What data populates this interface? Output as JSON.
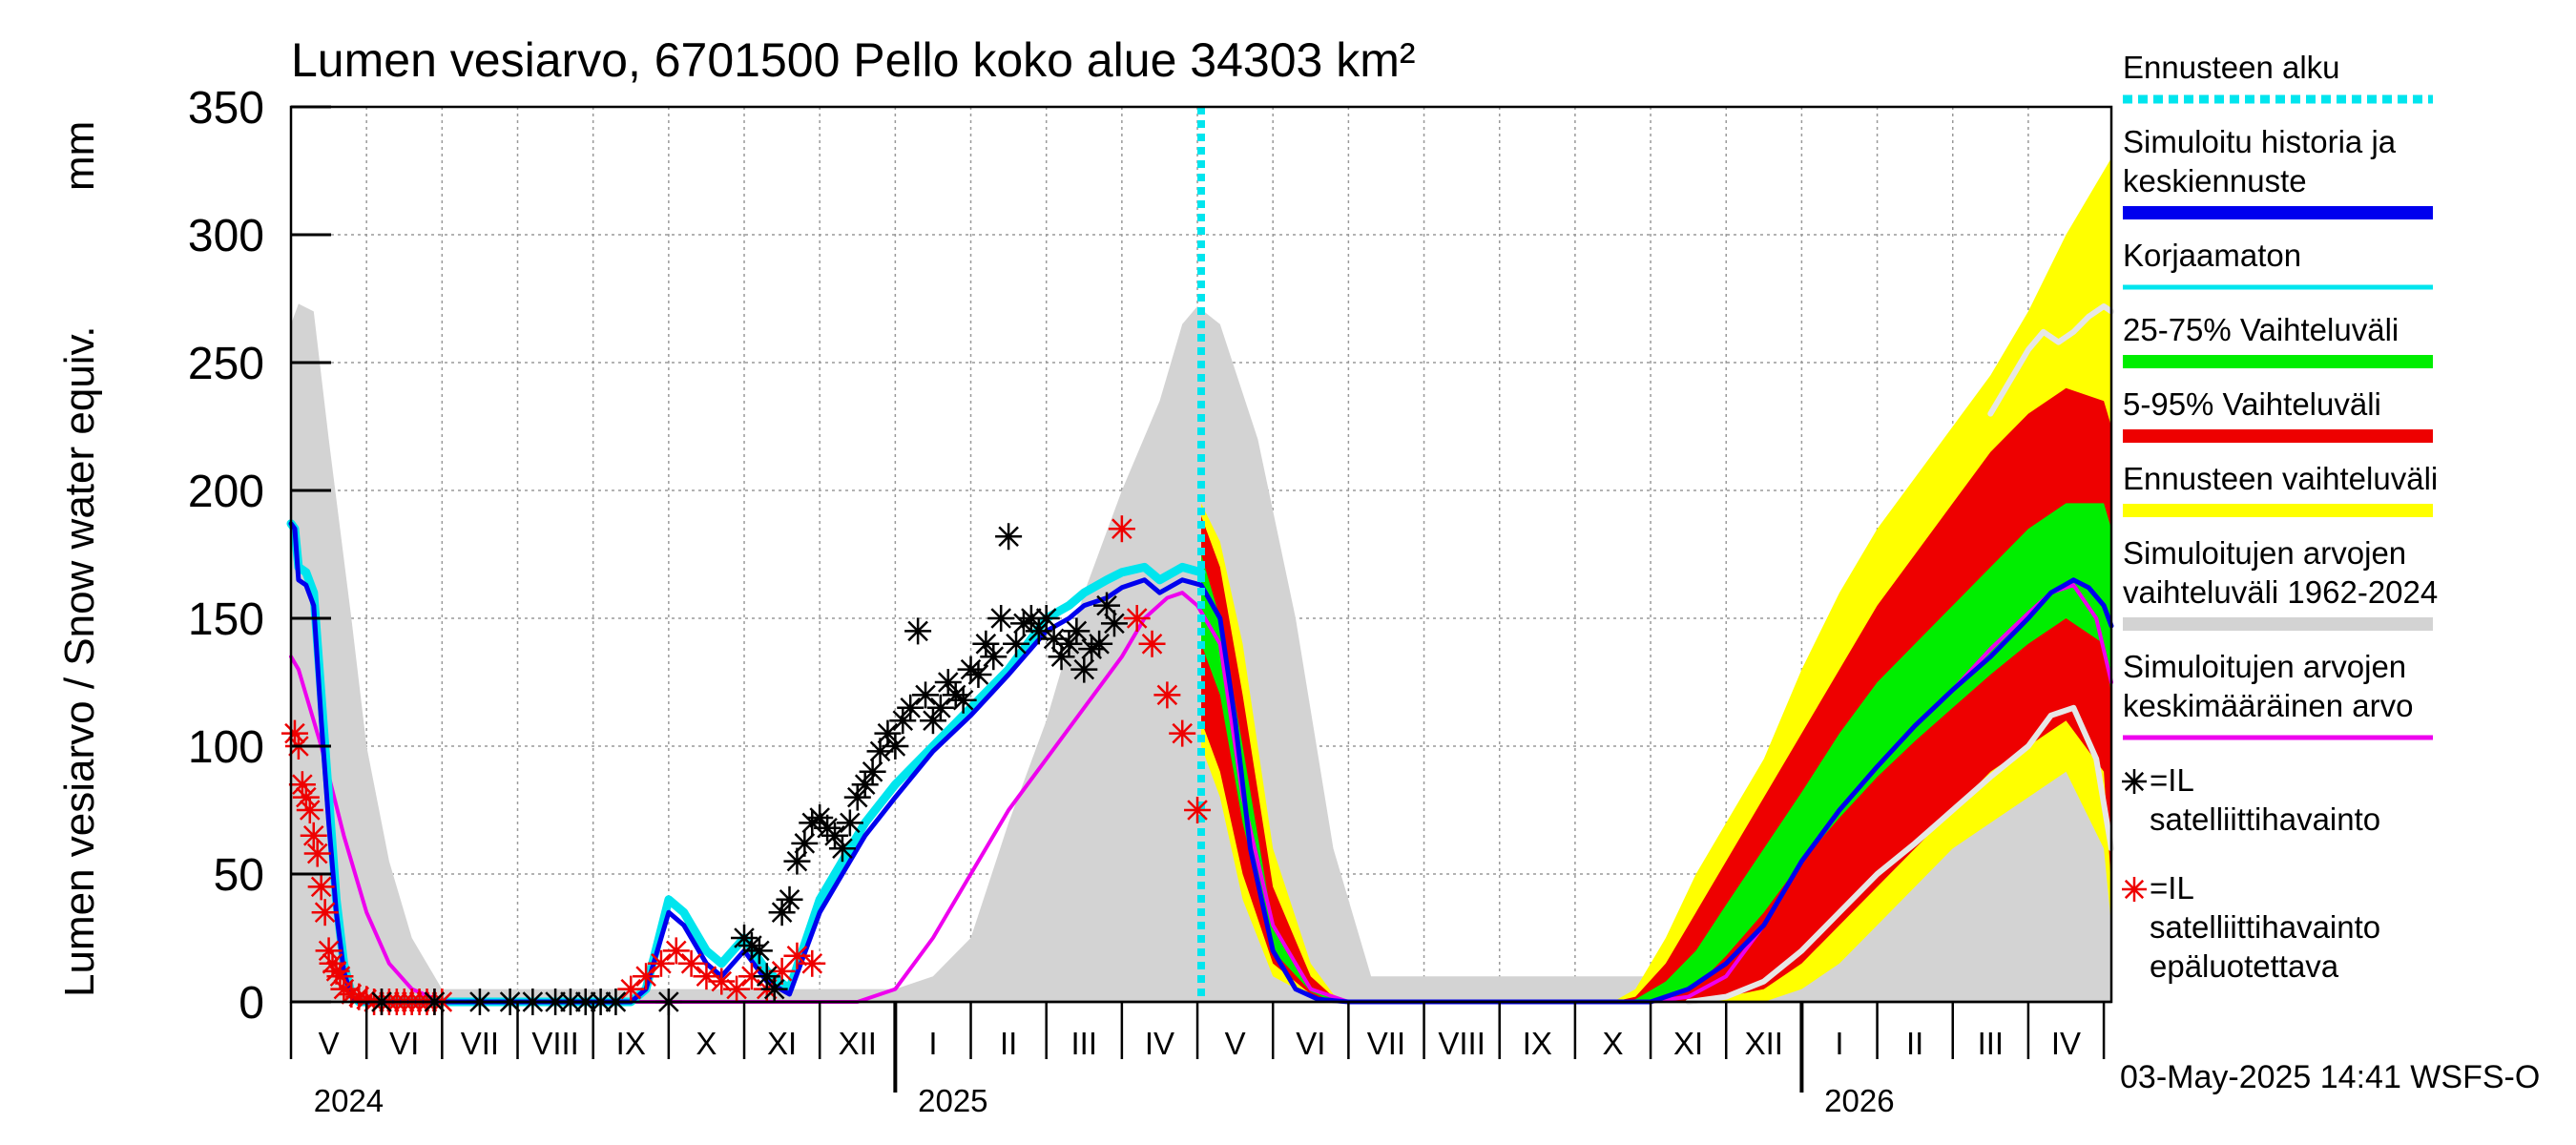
{
  "chart_data": {
    "type": "line",
    "title": "Lumen vesiarvo, 6701500 Pello koko alue 34303 km²",
    "ylabel": "Lumen vesiarvo / Snow water equiv.",
    "yunit": "mm",
    "ylim": [
      0,
      350
    ],
    "yticks": [
      0,
      50,
      100,
      150,
      200,
      250,
      300,
      350
    ],
    "x_unit": "month index (0 = 1 May 2024)",
    "xlim": [
      0,
      24.1
    ],
    "month_labels": [
      "V",
      "VI",
      "VII",
      "VIII",
      "IX",
      "X",
      "XI",
      "XII",
      "I",
      "II",
      "III",
      "IV",
      "V",
      "VI",
      "VII",
      "VIII",
      "IX",
      "X",
      "XI",
      "XII",
      "I",
      "II",
      "III",
      "IV"
    ],
    "year_labels": [
      {
        "label": "2024",
        "at": 0.3
      },
      {
        "label": "2025",
        "at": 8.3
      },
      {
        "label": "2026",
        "at": 20.3
      }
    ],
    "forecast_start": 12.05,
    "timestamp": "03-May-2025 14:41 WSFS-O",
    "colors": {
      "forecast_line": "#00e5ee",
      "simulated": "#0000ee",
      "uncorrected": "#00e5ee",
      "band_25_75": "#00ee00",
      "band_5_95": "#ee0000",
      "band_forecast": "#ffff00",
      "band_hist": "#d3d3d3",
      "mean": "#ee00ee",
      "sat_obs": "#000000",
      "sat_unreliable": "#ee0000"
    },
    "legend": [
      {
        "label": "Ennusteen alku",
        "style": "dash",
        "color": "#00e5ee"
      },
      {
        "label": "Simuloitu historia ja keskiennuste",
        "style": "thick",
        "color": "#0000ee"
      },
      {
        "label": "Korjaamaton",
        "style": "line",
        "color": "#00e5ee"
      },
      {
        "label": "25-75% Vaihteluväli",
        "style": "thick",
        "color": "#00ee00"
      },
      {
        "label": "5-95% Vaihteluväli",
        "style": "thick",
        "color": "#ee0000"
      },
      {
        "label": "Ennusteen vaihteluväli",
        "style": "thick",
        "color": "#ffff00"
      },
      {
        "label": "Simuloitujen arvojen vaihteluväli 1962-2024",
        "style": "thick",
        "color": "#d3d3d3"
      },
      {
        "label": "Simuloitujen arvojen keskimääräinen arvo",
        "style": "line",
        "color": "#ee00ee"
      },
      {
        "label": "=IL satelliittihavainto",
        "style": "star",
        "color": "#000000"
      },
      {
        "label": "=IL satelliittihavainto epäluotettava",
        "style": "star",
        "color": "#ee0000"
      }
    ],
    "series": {
      "hist_range_1962_2024": {
        "x": [
          0,
          0.1,
          0.3,
          0.5,
          0.8,
          1.0,
          1.3,
          1.6,
          2.0,
          7.5,
          8.0,
          8.5,
          9.0,
          9.5,
          10.0,
          10.5,
          11.0,
          11.5,
          11.8,
          12.0,
          12.3,
          12.8,
          13.3,
          13.8,
          14.3,
          18.5,
          19.0,
          19.5,
          20.0,
          20.5,
          21.0,
          21.5,
          22.0,
          22.5,
          23.0,
          23.5,
          23.8,
          24.1
        ],
        "upper": [
          265,
          273,
          270,
          220,
          150,
          100,
          55,
          25,
          5,
          5,
          5,
          10,
          25,
          70,
          110,
          160,
          200,
          235,
          265,
          272,
          265,
          220,
          150,
          60,
          10,
          10,
          20,
          50,
          90,
          120,
          160,
          190,
          210,
          240,
          255,
          260,
          265,
          270
        ],
        "lower": [
          0,
          0,
          0,
          0,
          0,
          0,
          0,
          0,
          0,
          0,
          0,
          0,
          0,
          0,
          0,
          0,
          0,
          0,
          0,
          0,
          0,
          0,
          0,
          0,
          0,
          0,
          0,
          0,
          0,
          0,
          0,
          0,
          0,
          0,
          0,
          0,
          0,
          0
        ]
      },
      "forecast_range": {
        "x": [
          12.05,
          12.3,
          12.6,
          13.0,
          13.5,
          13.8,
          14.0,
          17.5,
          17.8,
          18.2,
          18.6,
          19.0,
          19.5,
          20.0,
          20.5,
          21.0,
          21.5,
          22.0,
          22.5,
          23.0,
          23.5,
          24.0,
          24.1
        ],
        "upper": [
          195,
          180,
          140,
          60,
          15,
          3,
          0,
          0,
          5,
          25,
          50,
          70,
          95,
          130,
          160,
          185,
          205,
          225,
          245,
          270,
          300,
          325,
          330
        ],
        "lower": [
          100,
          80,
          40,
          10,
          2,
          0,
          0,
          0,
          0,
          0,
          0,
          0,
          0,
          5,
          15,
          30,
          45,
          60,
          70,
          80,
          90,
          60,
          30
        ]
      },
      "range_5_95": {
        "x": [
          12.05,
          12.3,
          12.6,
          13.0,
          13.5,
          13.8,
          14.0,
          17.5,
          17.8,
          18.2,
          18.6,
          19.0,
          19.5,
          20.0,
          20.5,
          21.0,
          21.5,
          22.0,
          22.5,
          23.0,
          23.5,
          24.0,
          24.1
        ],
        "upper": [
          190,
          170,
          120,
          45,
          10,
          2,
          0,
          0,
          2,
          15,
          35,
          55,
          80,
          105,
          130,
          155,
          175,
          195,
          215,
          230,
          240,
          235,
          225
        ],
        "lower": [
          110,
          90,
          50,
          15,
          3,
          0,
          0,
          0,
          0,
          0,
          0,
          2,
          5,
          15,
          30,
          45,
          60,
          75,
          90,
          100,
          110,
          90,
          45
        ]
      },
      "range_25_75": {
        "x": [
          12.05,
          12.3,
          12.6,
          13.0,
          13.5,
          13.8,
          14.0,
          17.5,
          17.8,
          18.2,
          18.6,
          19.0,
          19.5,
          20.0,
          20.5,
          21.0,
          21.5,
          22.0,
          22.5,
          23.0,
          23.5,
          24.0,
          24.1
        ],
        "upper": [
          175,
          150,
          100,
          30,
          6,
          1,
          0,
          0,
          1,
          8,
          20,
          38,
          60,
          82,
          105,
          125,
          140,
          155,
          170,
          185,
          195,
          195,
          185
        ],
        "lower": [
          140,
          120,
          70,
          20,
          4,
          0,
          0,
          0,
          0,
          1,
          6,
          18,
          35,
          55,
          72,
          88,
          102,
          115,
          128,
          140,
          150,
          140,
          120
        ]
      },
      "historical_mean": {
        "x": [
          0,
          0.1,
          0.4,
          0.7,
          1.0,
          1.3,
          1.6,
          2.0,
          7.5,
          8.0,
          8.5,
          9.0,
          9.5,
          10.0,
          10.5,
          11.0,
          11.3,
          11.6,
          11.8,
          12.0,
          12.3,
          12.6,
          13.0,
          13.5,
          14.0,
          18.0,
          18.5,
          19.0,
          19.5,
          20.0,
          20.5,
          21.0,
          21.5,
          22.0,
          22.5,
          23.0,
          23.3,
          23.6,
          23.9,
          24.1
        ],
        "y": [
          135,
          130,
          100,
          65,
          35,
          15,
          5,
          0,
          0,
          5,
          25,
          50,
          75,
          95,
          115,
          135,
          150,
          158,
          160,
          155,
          140,
          80,
          30,
          5,
          0,
          0,
          2,
          10,
          30,
          55,
          75,
          92,
          108,
          122,
          138,
          152,
          160,
          163,
          150,
          125
        ]
      },
      "historical_min_line": {
        "x": [
          18.5,
          19.0,
          19.5,
          20.0,
          20.5,
          21.0,
          21.5,
          22.0,
          22.5,
          23.0,
          23.3,
          23.6,
          23.9,
          24.1
        ],
        "y": [
          0,
          2,
          8,
          20,
          35,
          50,
          62,
          75,
          88,
          100,
          112,
          115,
          95,
          60
        ]
      },
      "historical_max_line": {
        "x": [
          22.5,
          22.8,
          23.0,
          23.2,
          23.4,
          23.6,
          23.8,
          24.0,
          24.1
        ],
        "y": [
          230,
          245,
          255,
          262,
          258,
          262,
          268,
          272,
          270
        ]
      },
      "uncorrected": {
        "x": [
          0,
          0.05,
          0.1,
          0.2,
          0.3,
          0.4,
          0.5,
          0.6,
          0.7,
          0.8,
          0.9,
          1.0,
          4.5,
          4.7,
          5.0,
          5.2,
          5.5,
          5.7,
          6.0,
          6.3,
          6.6,
          7.0,
          7.3,
          7.6,
          8.0,
          8.5,
          9.0,
          9.5,
          10.0,
          10.3,
          10.5,
          10.8,
          11.0,
          11.3,
          11.5,
          11.8,
          12.05
        ],
        "y": [
          187,
          185,
          170,
          168,
          160,
          120,
          80,
          40,
          15,
          3,
          0,
          0,
          0,
          5,
          40,
          35,
          20,
          15,
          25,
          12,
          5,
          40,
          55,
          70,
          85,
          100,
          115,
          130,
          150,
          155,
          160,
          165,
          168,
          170,
          165,
          170,
          168
        ]
      },
      "simulated": {
        "x": [
          0,
          0.05,
          0.1,
          0.2,
          0.3,
          0.4,
          0.5,
          0.6,
          0.7,
          0.8,
          0.9,
          1.0,
          4.5,
          4.7,
          5.0,
          5.2,
          5.5,
          5.7,
          6.0,
          6.3,
          6.6,
          7.0,
          7.3,
          7.6,
          8.0,
          8.5,
          9.0,
          9.5,
          10.0,
          10.3,
          10.5,
          10.8,
          11.0,
          11.3,
          11.5,
          11.8,
          12.05,
          12.3,
          12.5,
          12.7,
          13.0,
          13.3,
          13.6,
          14.0,
          17.5,
          18.0,
          18.5,
          19.0,
          19.5,
          20.0,
          20.5,
          21.0,
          21.5,
          22.0,
          22.5,
          23.0,
          23.3,
          23.6,
          23.8,
          24.0,
          24.1
        ],
        "y": [
          187,
          185,
          165,
          163,
          155,
          110,
          70,
          35,
          12,
          2,
          0,
          0,
          0,
          5,
          35,
          30,
          15,
          10,
          20,
          8,
          3,
          35,
          50,
          65,
          80,
          98,
          112,
          128,
          145,
          150,
          155,
          158,
          162,
          165,
          160,
          165,
          163,
          150,
          110,
          60,
          20,
          5,
          1,
          0,
          0,
          0,
          5,
          15,
          30,
          55,
          75,
          92,
          108,
          122,
          135,
          150,
          160,
          165,
          162,
          155,
          147
        ]
      },
      "sat_obs": {
        "x": [
          1.2,
          1.9,
          2.5,
          2.9,
          3.2,
          3.5,
          3.7,
          3.9,
          4.1,
          4.3,
          5.0,
          6.0,
          6.1,
          6.2,
          6.3,
          6.4,
          6.5,
          6.6,
          6.7,
          6.8,
          6.9,
          7.0,
          7.1,
          7.2,
          7.3,
          7.4,
          7.5,
          7.6,
          7.7,
          7.8,
          7.9,
          8.0,
          8.1,
          8.2,
          8.3,
          8.4,
          8.5,
          8.6,
          8.7,
          8.8,
          8.9,
          9.0,
          9.1,
          9.2,
          9.3,
          9.4,
          9.5,
          9.6,
          9.7,
          9.8,
          9.9,
          10.0,
          10.1,
          10.2,
          10.3,
          10.4,
          10.5,
          10.6,
          10.7,
          10.8,
          10.9
        ],
        "y": [
          0,
          0,
          0,
          0,
          0,
          0,
          0,
          0,
          0,
          0,
          0,
          25,
          22,
          20,
          10,
          5,
          35,
          40,
          55,
          62,
          70,
          72,
          68,
          65,
          60,
          70,
          80,
          85,
          90,
          98,
          105,
          100,
          110,
          115,
          145,
          120,
          110,
          115,
          125,
          120,
          118,
          130,
          128,
          140,
          135,
          150,
          182,
          140,
          148,
          150,
          145,
          150,
          142,
          135,
          140,
          145,
          130,
          138,
          140,
          155,
          148
        ]
      },
      "sat_unreliable": {
        "x": [
          0.05,
          0.1,
          0.15,
          0.2,
          0.25,
          0.3,
          0.35,
          0.4,
          0.45,
          0.5,
          0.55,
          0.6,
          0.65,
          0.7,
          0.8,
          0.9,
          1.0,
          1.1,
          1.2,
          1.3,
          1.4,
          1.5,
          1.6,
          1.7,
          1.8,
          1.9,
          2.0,
          4.5,
          4.7,
          4.9,
          5.1,
          5.3,
          5.5,
          5.7,
          5.9,
          6.1,
          6.3,
          6.5,
          6.7,
          6.9,
          11.0,
          11.2,
          11.4,
          11.6,
          11.8,
          12.0
        ],
        "y": [
          105,
          100,
          85,
          80,
          75,
          65,
          58,
          45,
          35,
          20,
          15,
          12,
          10,
          5,
          3,
          2,
          1,
          0,
          0,
          0,
          0,
          0,
          0,
          0,
          0,
          0,
          0,
          5,
          10,
          15,
          20,
          15,
          10,
          8,
          5,
          10,
          5,
          12,
          18,
          15,
          185,
          150,
          140,
          120,
          105,
          75
        ]
      }
    }
  }
}
